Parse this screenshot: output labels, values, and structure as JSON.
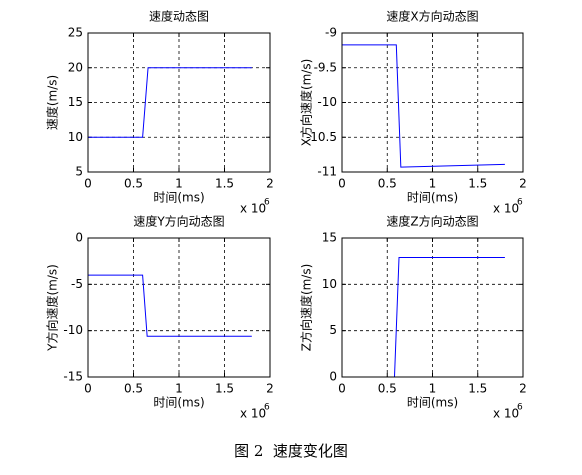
{
  "chart_data": [
    {
      "type": "line",
      "title": "速度动态图",
      "xlabel": "时间(ms)",
      "ylabel": "速度(m/s)",
      "x_scale_label": "x 10",
      "x_scale_exponent": "6",
      "x": [
        0,
        0.6,
        0.66,
        1.8
      ],
      "values": [
        10,
        10,
        20,
        20
      ],
      "color": "#0000ff",
      "xlim": [
        0,
        2
      ],
      "xticks": [
        0,
        0.5,
        1,
        1.5,
        2
      ],
      "ylim": [
        5,
        25
      ],
      "yticks": [
        5,
        10,
        15,
        20,
        25
      ],
      "grid": true
    },
    {
      "type": "line",
      "title": "速度X方向动态图",
      "xlabel": "时间(ms)",
      "ylabel": "X方向速度(m/s)",
      "x_scale_label": "x 10",
      "x_scale_exponent": "6",
      "x": [
        0,
        0.6,
        0.65,
        1.8
      ],
      "values": [
        -9.17,
        -9.17,
        -10.93,
        -10.89
      ],
      "color": "#0000ff",
      "xlim": [
        0,
        2
      ],
      "xticks": [
        0,
        0.5,
        1,
        1.5,
        2
      ],
      "ylim": [
        -11,
        -9
      ],
      "yticks": [
        -11,
        -10.5,
        -10,
        -9.5,
        -9
      ],
      "grid": true
    },
    {
      "type": "line",
      "title": "速度Y方向动态图",
      "xlabel": "时间(ms)",
      "ylabel": "Y方向速度(m/s)",
      "x_scale_label": "x 10",
      "x_scale_exponent": "6",
      "x": [
        0,
        0.6,
        0.65,
        1.8
      ],
      "values": [
        -4,
        -4,
        -10.6,
        -10.6
      ],
      "color": "#0000ff",
      "xlim": [
        0,
        2
      ],
      "xticks": [
        0,
        0.5,
        1,
        1.5,
        2
      ],
      "ylim": [
        -15,
        0
      ],
      "yticks": [
        -15,
        -10,
        -5,
        0
      ],
      "grid": true
    },
    {
      "type": "line",
      "title": "速度Z方向动态图",
      "xlabel": "时间(ms)",
      "ylabel": "Z方向速度(m/s)",
      "x_scale_label": "x 10",
      "x_scale_exponent": "6",
      "x": [
        0,
        0.58,
        0.63,
        1.8
      ],
      "values": [
        0,
        0,
        12.9,
        12.9
      ],
      "color": "#0000ff",
      "xlim": [
        0,
        2
      ],
      "xticks": [
        0,
        0.5,
        1,
        1.5,
        2
      ],
      "ylim": [
        0,
        15
      ],
      "yticks": [
        0,
        5,
        10,
        15
      ],
      "grid": true
    }
  ],
  "caption": "图 2  速度变化图"
}
